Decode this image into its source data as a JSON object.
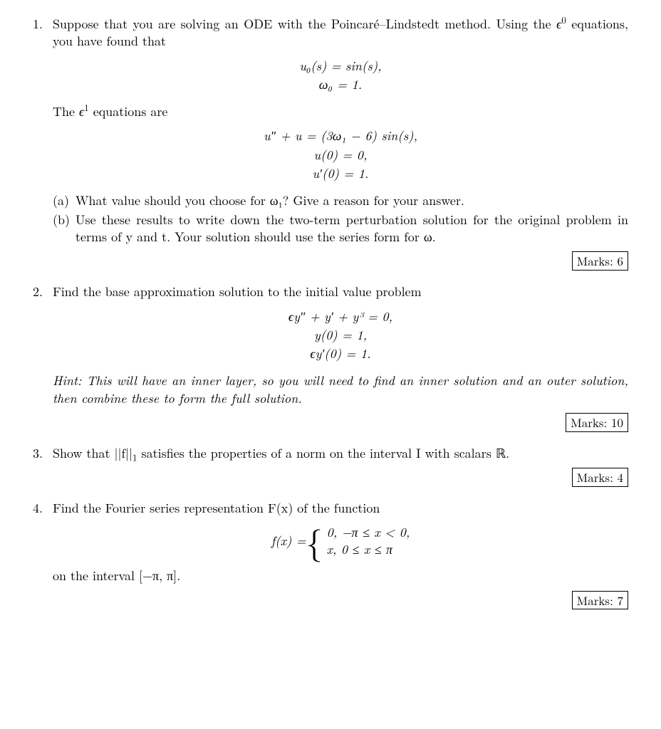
{
  "q1": {
    "number": "1.",
    "intro_a": "Suppose that you are solving an ODE with the Poincaré–Lindstedt method. Using the ",
    "intro_b": "equations, you have found that",
    "epsilon0": "ϵ",
    "eq1": "u₀(s) = sin(s),",
    "eq2": "ω₀ = 1.",
    "mid_a": "The ",
    "mid_b": " equations are",
    "epsilon1": "ϵ",
    "eq3": "u″ + u = (3ω₁ − 6) sin(s),",
    "eq4": "u(0) = 0,",
    "eq5": "u′(0) = 1.",
    "a_num": "(a)",
    "a_text": "What value should you choose for ω₁? Give a reason for your answer.",
    "b_num": "(b)",
    "b_text": "Use these results to write down the two-term perturbation solution for the original problem in terms of y and t. Your solution should use the series form for ω.",
    "marks": "Marks: 6"
  },
  "q2": {
    "number": "2.",
    "intro": "Find the base approximation solution to the initial value problem",
    "eq1": "ϵy″ + y′ + y³ = 0,",
    "eq2": "y(0) = 1,",
    "eq3": "ϵy′(0) = 1.",
    "hint": "Hint: This will have an inner layer, so you will need to find an inner solution and an outer solution, then combine these to form the full solution.",
    "marks": "Marks: 10"
  },
  "q3": {
    "number": "3.",
    "text_a": "Show that ",
    "text_b": " satisfies the properties of a norm on the interval I with scalars ",
    "text_c": ".",
    "norm": "||f||",
    "norm_sub": "1",
    "reals": "ℝ",
    "marks": "Marks: 4"
  },
  "q4": {
    "number": "4.",
    "intro": "Find the Fourier series representation F(x) of the function",
    "lhs": "f(x) = ",
    "case1": "0,    −π ≤ x < 0,",
    "case2": "x,    0 ≤ x ≤ π",
    "outro": "on the interval [−π, π].",
    "marks": "Marks: 7"
  }
}
